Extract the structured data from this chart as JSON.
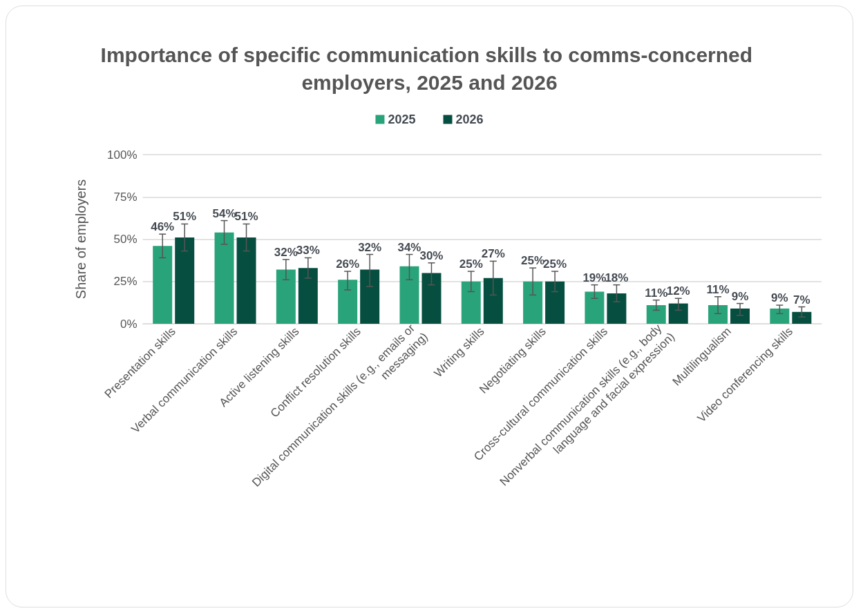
{
  "chart_data": {
    "type": "bar",
    "title": "Importance of specific communication skills to comms-concerned employers, 2025 and 2026",
    "ylabel": "Share of employers",
    "categories": [
      "Presentation skills",
      "Verbal communication skills",
      "Active listening skills",
      "Conflict resolution skills",
      "Digital communication skills (e.g., emails or messaging)",
      "Writing skills",
      "Negotiating skills",
      "Cross-cultural communication skills",
      "Nonverbal communication skills (e.g., body language and facial expression)",
      "Multilingualism",
      "Video conferencing skills"
    ],
    "series": [
      {
        "name": "2025",
        "color": "#29a37a",
        "values": [
          46,
          54,
          32,
          26,
          34,
          25,
          25,
          19,
          11,
          11,
          9
        ],
        "value_labels": [
          "46%",
          "54%",
          "32%",
          "26%",
          "34%",
          "25%",
          "25%",
          "19%",
          "11%",
          "11%",
          "9%"
        ],
        "errors": [
          [
            39,
            53
          ],
          [
            47,
            61
          ],
          [
            26,
            38
          ],
          [
            20,
            31
          ],
          [
            26,
            41
          ],
          [
            19,
            31
          ],
          [
            17,
            33
          ],
          [
            15,
            23
          ],
          [
            8,
            14
          ],
          [
            6,
            16
          ],
          [
            6,
            11
          ]
        ]
      },
      {
        "name": "2026",
        "color": "#064f40",
        "values": [
          51,
          51,
          33,
          32,
          30,
          27,
          25,
          18,
          12,
          9,
          7
        ],
        "value_labels": [
          "51%",
          "51%",
          "33%",
          "32%",
          "30%",
          "27%",
          "25%",
          "18%",
          "12%",
          "9%",
          "7%"
        ],
        "errors": [
          [
            43,
            59
          ],
          [
            43,
            59
          ],
          [
            27,
            39
          ],
          [
            22,
            41
          ],
          [
            23,
            36
          ],
          [
            17,
            37
          ],
          [
            19,
            31
          ],
          [
            13,
            23
          ],
          [
            8,
            15
          ],
          [
            5,
            12
          ],
          [
            4,
            10
          ]
        ]
      }
    ],
    "ylim": [
      0,
      100
    ],
    "yticks": [
      {
        "value": 0,
        "label": "0%"
      },
      {
        "value": 25,
        "label": "25%"
      },
      {
        "value": 50,
        "label": "50%"
      },
      {
        "value": 75,
        "label": "75%"
      },
      {
        "value": 100,
        "label": "100%"
      }
    ],
    "grid": "y",
    "legend": "top"
  }
}
